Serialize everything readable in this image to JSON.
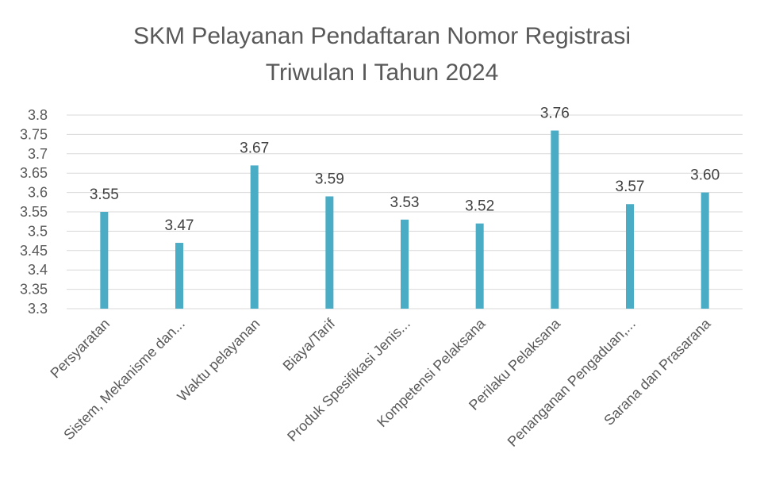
{
  "chart_data": {
    "type": "bar",
    "title_line1": "SKM Pelayanan Pendaftaran Nomor Registrasi",
    "title_line2": "Triwulan I Tahun 2024",
    "categories": [
      "Persyaratan",
      "Sistem, Mekanisme dan...",
      "Waktu pelayanan",
      "Biaya/Tarif",
      "Produk Spesifikasi Jenis...",
      "Kompetensi Pelaksana",
      "Perilaku Pelaksana",
      "Penanganan Pengaduan,...",
      "Sarana dan Prasarana"
    ],
    "values": [
      3.55,
      3.47,
      3.67,
      3.59,
      3.53,
      3.52,
      3.76,
      3.57,
      3.6
    ],
    "data_labels": [
      "3.55",
      "3.47",
      "3.67",
      "3.59",
      "3.53",
      "3.52",
      "3.76",
      "3.57",
      "3.60"
    ],
    "ylim": [
      3.3,
      3.8
    ],
    "yticks": [
      "3.3",
      "3.35",
      "3.4",
      "3.45",
      "3.5",
      "3.55",
      "3.6",
      "3.65",
      "3.7",
      "3.75",
      "3.8"
    ],
    "ytick_values": [
      3.3,
      3.35,
      3.4,
      3.45,
      3.5,
      3.55,
      3.6,
      3.65,
      3.7,
      3.75,
      3.8
    ],
    "grid": true,
    "bar_color": "#4bacc6",
    "text_color": "#595959",
    "grid_color": "#d9d9d9"
  }
}
